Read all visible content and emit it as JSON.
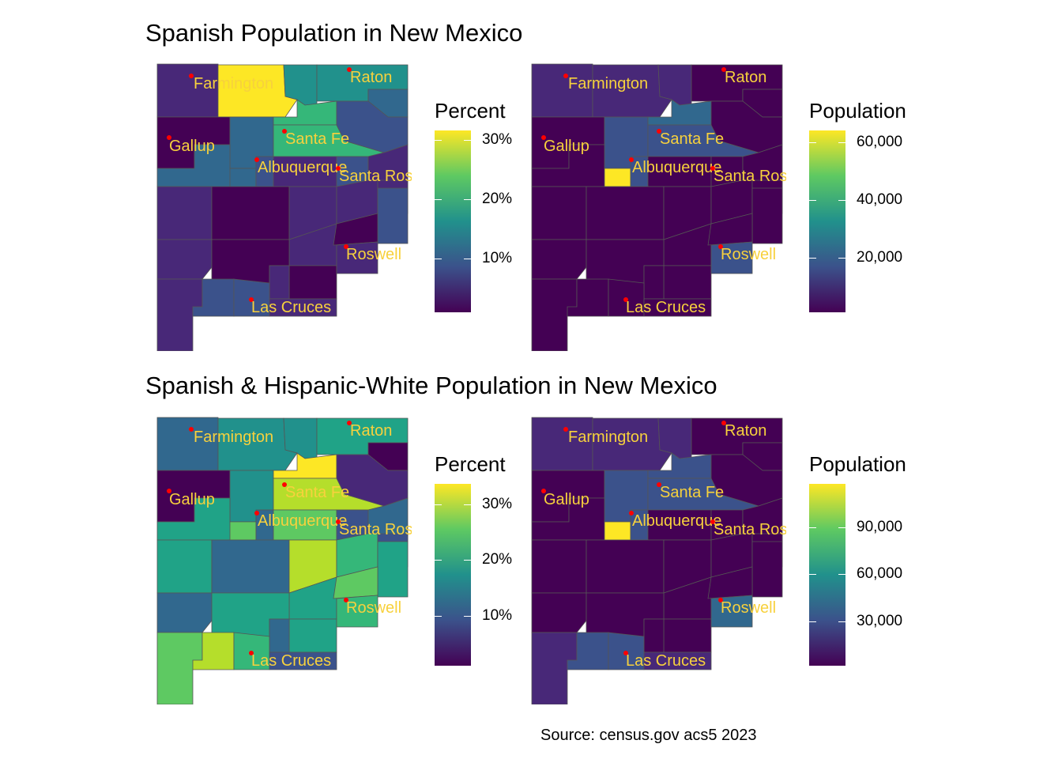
{
  "titles": {
    "top": "Spanish Population in New Mexico",
    "bottom": "Spanish & Hispanic-White Population in New Mexico"
  },
  "source": "Source: census.gov acs5 2023",
  "colors": {
    "label": "#f7d13d",
    "point": "#ff0000",
    "border": "#555555",
    "viridis": [
      "#440154",
      "#482878",
      "#3b528b",
      "#31688e",
      "#21918c",
      "#20a387",
      "#35b779",
      "#5ec962",
      "#b5de2b",
      "#fde725"
    ]
  },
  "cities": [
    {
      "name": "Farmington"
    },
    {
      "name": "Raton"
    },
    {
      "name": "Gallup"
    },
    {
      "name": "Santa Fe"
    },
    {
      "name": "Albuquerque"
    },
    {
      "name": "Santa Ros"
    },
    {
      "name": "Roswell"
    },
    {
      "name": "Las Cruces"
    }
  ],
  "maps": [
    {
      "legend": {
        "title": "Percent",
        "labels": [
          "30%",
          "20%",
          "10%"
        ]
      },
      "county_colors": [
        "#482878",
        "#fde725",
        "#21918c",
        "#21918c",
        "#31688e",
        "#440154",
        "#31688e",
        "#35b779",
        "#35b779",
        "#3b528b",
        "#31688e",
        "#31688e",
        "#3b528b",
        "#482878",
        "#3b528b",
        "#482878",
        "#482878",
        "#440154",
        "#482878",
        "#482878",
        "#482878",
        "#3b528b",
        "#482878",
        "#482878",
        "#440154",
        "#440154",
        "#440154",
        "#482878",
        "#482878",
        "#482878",
        "#3b528b",
        "#3b528b",
        "#482878"
      ]
    },
    {
      "legend": {
        "title": "Population",
        "labels": [
          "60,000",
          "40,000",
          "20,000"
        ]
      },
      "county_colors": [
        "#482878",
        "#482878",
        "#482878",
        "#440154",
        "#440154",
        "#440154",
        "#3b528b",
        "#31688e",
        "#3b528b",
        "#440154",
        "#440154",
        "#fde725",
        "#3b528b",
        "#440154",
        "#440154",
        "#440154",
        "#440154",
        "#440154",
        "#440154",
        "#440154",
        "#440154",
        "#440154",
        "#440154",
        "#440154",
        "#440154",
        "#440154",
        "#440154",
        "#3b528b",
        "#440154",
        "#440154",
        "#440154",
        "#440154",
        "#440154"
      ]
    },
    {
      "legend": {
        "title": "Percent",
        "labels": [
          "30%",
          "20%",
          "10%"
        ]
      },
      "county_colors": [
        "#31688e",
        "#21918c",
        "#21918c",
        "#20a387",
        "#440154",
        "#440154",
        "#21918c",
        "#fde725",
        "#b5de2b",
        "#482878",
        "#20a387",
        "#5ec962",
        "#31688e",
        "#5ec962",
        "#3b528b",
        "#31688e",
        "#20a387",
        "#31688e",
        "#b5de2b",
        "#35b779",
        "#3b528b",
        "#20a387",
        "#20a387",
        "#31688e",
        "#20a387",
        "#20a387",
        "#5ec962",
        "#35b779",
        "#31688e",
        "#5ec962",
        "#b5de2b",
        "#35b779",
        "#3b528b"
      ]
    },
    {
      "legend": {
        "title": "Population",
        "labels": [
          "90,000",
          "60,000",
          "30,000"
        ]
      },
      "county_colors": [
        "#482878",
        "#482878",
        "#482878",
        "#440154",
        "#440154",
        "#440154",
        "#3b528b",
        "#3b528b",
        "#3b528b",
        "#440154",
        "#440154",
        "#fde725",
        "#3b528b",
        "#440154",
        "#440154",
        "#440154",
        "#440154",
        "#440154",
        "#440154",
        "#440154",
        "#440154",
        "#440154",
        "#440154",
        "#440154",
        "#440154",
        "#440154",
        "#440154",
        "#31688e",
        "#440154",
        "#482878",
        "#3b528b",
        "#3b528b",
        "#482878"
      ]
    }
  ]
}
